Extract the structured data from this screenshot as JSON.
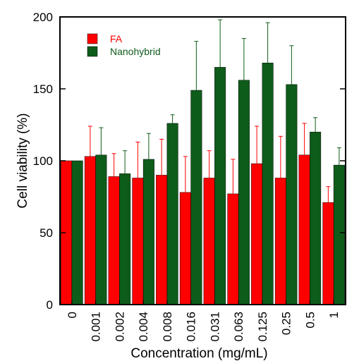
{
  "chart_data": {
    "type": "bar",
    "title": "",
    "xlabel": "Concentration (mg/mL)",
    "ylabel": "Cell viability (%)",
    "ylim": [
      0,
      200
    ],
    "yticks": [
      0,
      50,
      100,
      150,
      200
    ],
    "grid": false,
    "legend_position": "top-left",
    "categories": [
      "0",
      "0.001",
      "0.002",
      "0.004",
      "0.008",
      "0.016",
      "0.031",
      "0.063",
      "0.125",
      "0.25",
      "0.5",
      "1"
    ],
    "series": [
      {
        "name": "FA",
        "color": "#ff0000",
        "values": [
          100,
          103,
          89,
          88,
          90,
          78,
          88,
          77,
          98,
          88,
          104,
          71
        ],
        "error": [
          0,
          21,
          16,
          25,
          25,
          25,
          19,
          24,
          26,
          29,
          22,
          11
        ]
      },
      {
        "name": "Nanohybrid",
        "color": "#0d5c1a",
        "values": [
          100,
          104,
          91,
          101,
          126,
          149,
          165,
          156,
          168,
          153,
          120,
          97
        ],
        "error": [
          0,
          19,
          16,
          18,
          6,
          34,
          33,
          29,
          28,
          27,
          10,
          12
        ]
      }
    ]
  }
}
